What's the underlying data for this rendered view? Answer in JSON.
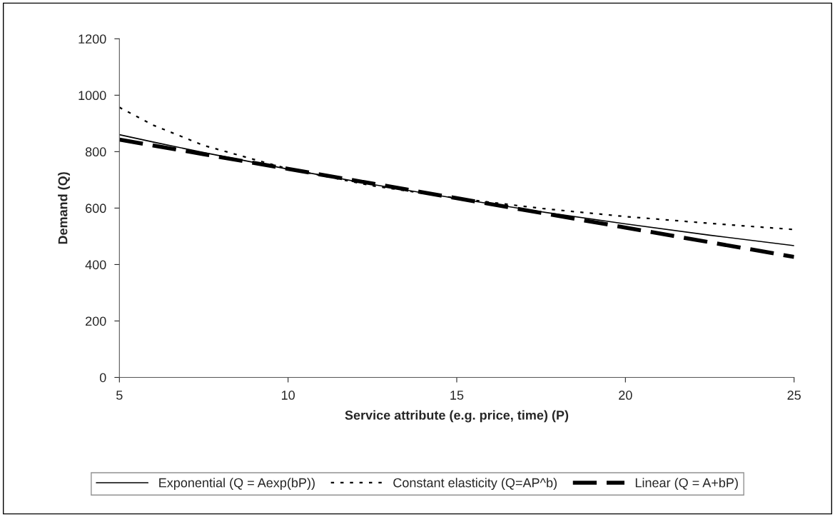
{
  "chart_data": {
    "type": "line",
    "xlabel": "Service attribute (e.g. price, time) (P)",
    "ylabel": "Demand (Q)",
    "x": [
      5,
      6,
      7.5,
      10,
      12.5,
      15,
      17.5,
      20,
      22.5,
      25
    ],
    "xlim": [
      5,
      25
    ],
    "xticks": [
      5,
      10,
      15,
      20,
      25
    ],
    "ylim": [
      0,
      1200
    ],
    "yticks": [
      0,
      200,
      400,
      600,
      800,
      1000,
      1200
    ],
    "grid": false,
    "legend": "bottom",
    "series": [
      {
        "name": "Exponential (Q = Aexp(bP))",
        "color": "#000000",
        "line_style": "solid",
        "values": [
          860,
          834,
          797,
          738,
          684,
          634,
          587,
          544,
          504,
          467
        ]
      },
      {
        "name": "Constant elasticity (Q=AP^b)",
        "color": "#000000",
        "line_style": "dotted",
        "values": [
          957,
          894,
          822,
          739,
          679,
          635,
          599,
          570,
          546,
          524
        ]
      },
      {
        "name": "Linear (Q = A+bP)",
        "color": "#000000",
        "line_style": "dashed",
        "values": [
          843,
          822,
          791,
          739,
          687,
          635,
          583,
          531,
          479,
          427
        ]
      }
    ]
  }
}
